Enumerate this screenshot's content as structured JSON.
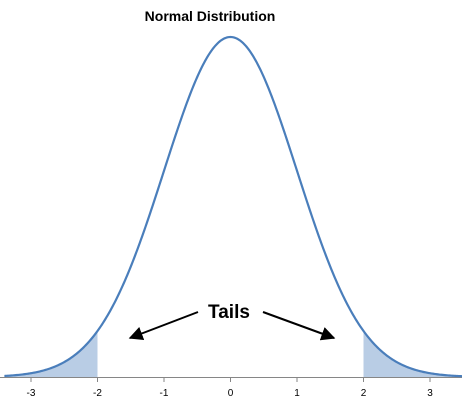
{
  "chart_data": {
    "type": "area",
    "title": "Normal Distribution",
    "xlabel": "",
    "ylabel": "",
    "xlim": [
      -3.4,
      3.5
    ],
    "ylim": [
      0,
      0.4
    ],
    "x_ticks": [
      "-3",
      "-2",
      "-1",
      "0",
      "1",
      "2",
      "3"
    ],
    "curve": "standard normal density",
    "shaded_regions": [
      [
        -3.4,
        -2
      ],
      [
        2,
        3.5
      ]
    ],
    "annotation": "Tails",
    "grid": false,
    "legend": "none",
    "colors": {
      "curve": "#4a7ebb",
      "fill": "#b9cde5",
      "axis": "#868686"
    }
  }
}
